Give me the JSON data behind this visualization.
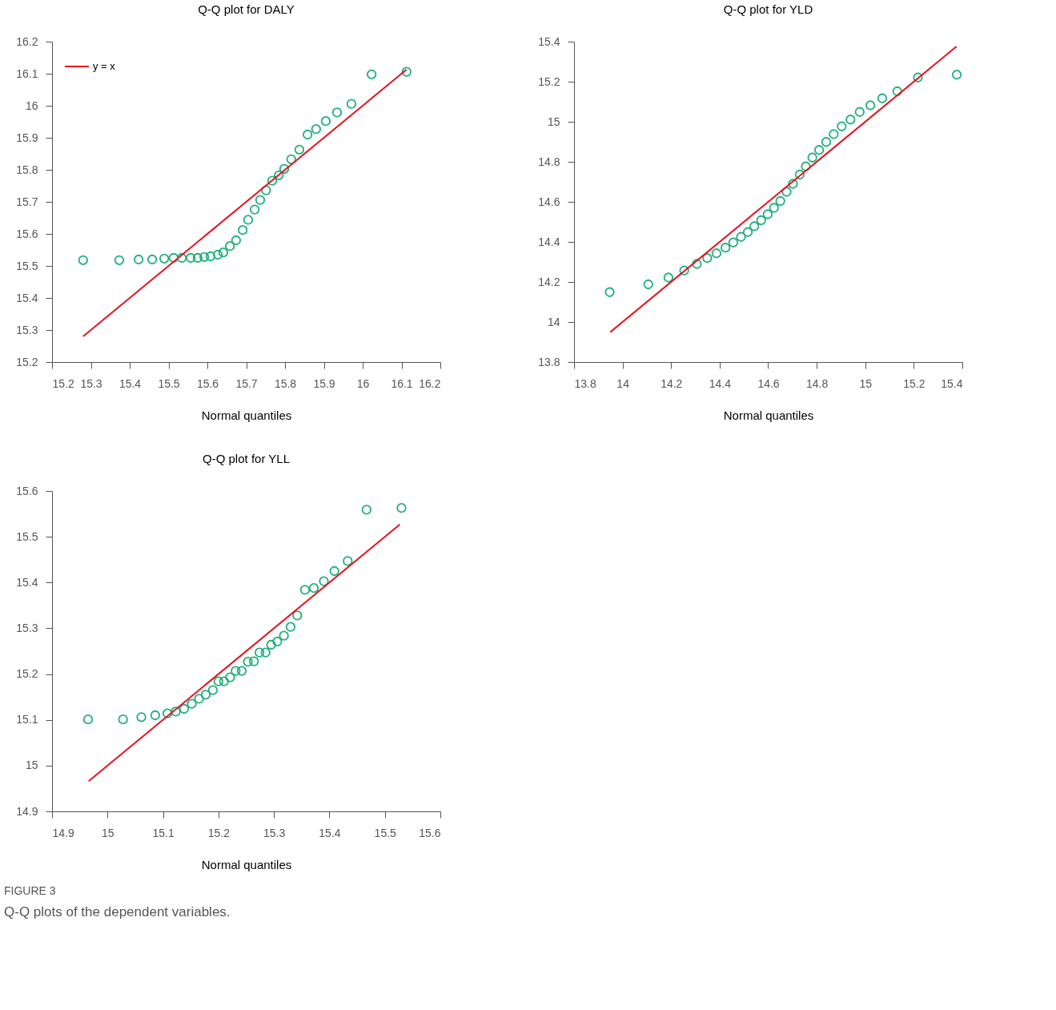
{
  "chart_data": [
    {
      "type": "scatter",
      "title": "Q-Q plot for DALY",
      "xlabel": "Normal quantiles",
      "xlim": [
        15.2,
        16.2
      ],
      "ylim": [
        15.2,
        16.2
      ],
      "xticks": [
        15.2,
        15.3,
        15.4,
        15.5,
        15.6,
        15.7,
        15.8,
        15.9,
        16,
        16.1,
        16.2
      ],
      "yticks": [
        15.2,
        15.3,
        15.4,
        15.5,
        15.6,
        15.7,
        15.8,
        15.9,
        16,
        16.1,
        16.2
      ],
      "grid": false,
      "legend": "top left",
      "series": [
        {
          "marker": "circle",
          "color": "#20b07a",
          "x": [
            15.28,
            15.373,
            15.423,
            15.458,
            15.489,
            15.513,
            15.534,
            15.557,
            15.575,
            15.592,
            15.608,
            15.627,
            15.641,
            15.658,
            15.674,
            15.691,
            15.705,
            15.722,
            15.736,
            15.751,
            15.767,
            15.784,
            15.798,
            15.816,
            15.837,
            15.858,
            15.88,
            15.905,
            15.934,
            15.971,
            16.023,
            16.113
          ],
          "values": [
            15.518,
            15.518,
            15.52,
            15.52,
            15.523,
            15.525,
            15.525,
            15.525,
            15.525,
            15.528,
            15.53,
            15.535,
            15.542,
            15.562,
            15.58,
            15.612,
            15.644,
            15.676,
            15.706,
            15.736,
            15.766,
            15.783,
            15.803,
            15.833,
            15.863,
            15.91,
            15.927,
            15.952,
            15.979,
            16.006,
            16.098,
            16.106
          ]
        },
        {
          "type": "line",
          "marker": "none",
          "name": "y = x",
          "color": "#e8101e",
          "x": [
            15.28,
            16.113
          ],
          "values": [
            15.28,
            16.113
          ]
        }
      ]
    },
    {
      "type": "scatter",
      "title": "Q-Q plot for YLD",
      "xlabel": "Normal quantiles",
      "xlim": [
        13.8,
        15.4
      ],
      "ylim": [
        13.8,
        15.4
      ],
      "xticks": [
        13.8,
        14,
        14.2,
        14.4,
        14.6,
        14.8,
        15,
        15.2,
        15.4
      ],
      "yticks": [
        13.8,
        14,
        14.2,
        14.4,
        14.6,
        14.8,
        15,
        15.2,
        15.4
      ],
      "grid": false,
      "legend": "top left",
      "series": [
        {
          "marker": "circle",
          "color": "#20b07a",
          "x": [
            13.947,
            14.106,
            14.189,
            14.254,
            14.306,
            14.349,
            14.387,
            14.424,
            14.456,
            14.488,
            14.516,
            14.543,
            14.571,
            14.598,
            14.624,
            14.65,
            14.676,
            14.702,
            14.73,
            14.755,
            14.782,
            14.81,
            14.839,
            14.87,
            14.903,
            14.939,
            14.977,
            15.021,
            15.07,
            15.132,
            15.217,
            15.377
          ],
          "values": [
            14.149,
            14.188,
            14.222,
            14.257,
            14.29,
            14.319,
            14.343,
            14.371,
            14.397,
            14.425,
            14.449,
            14.478,
            14.508,
            14.538,
            14.57,
            14.604,
            14.65,
            14.69,
            14.736,
            14.777,
            14.821,
            14.859,
            14.899,
            14.938,
            14.977,
            15.011,
            15.049,
            15.082,
            15.117,
            15.152,
            15.221,
            15.235
          ]
        },
        {
          "type": "line",
          "marker": "none",
          "name": "y = x",
          "color": "#e8101e",
          "x": [
            13.949,
            15.376
          ],
          "values": [
            13.949,
            15.376
          ]
        }
      ]
    },
    {
      "type": "scatter",
      "title": "Q-Q plot for YLL",
      "xlabel": "Normal quantiles",
      "xlim": [
        14.9,
        15.6
      ],
      "ylim": [
        14.9,
        15.6
      ],
      "xticks": [
        14.9,
        15,
        15.1,
        15.2,
        15.3,
        15.4,
        15.5,
        15.6
      ],
      "yticks": [
        14.9,
        15,
        15.1,
        15.2,
        15.3,
        15.4,
        15.5,
        15.6
      ],
      "grid": false,
      "legend": "top left",
      "annotations": [
        "FIGURE 3",
        "Q-Q plots of the dependent variables."
      ],
      "series": [
        {
          "marker": "circle",
          "color": "#20b07a",
          "x": [
            14.965,
            15.028,
            15.061,
            15.086,
            15.108,
            15.123,
            15.138,
            15.152,
            15.165,
            15.177,
            15.19,
            15.2,
            15.21,
            15.221,
            15.231,
            15.242,
            15.253,
            15.264,
            15.274,
            15.285,
            15.295,
            15.306,
            15.318,
            15.33,
            15.342,
            15.356,
            15.372,
            15.39,
            15.409,
            15.433,
            15.467,
            15.53
          ],
          "values": [
            15.101,
            15.101,
            15.106,
            15.11,
            15.114,
            15.118,
            15.124,
            15.135,
            15.146,
            15.155,
            15.165,
            15.184,
            15.184,
            15.193,
            15.207,
            15.207,
            15.227,
            15.228,
            15.247,
            15.247,
            15.264,
            15.271,
            15.284,
            15.303,
            15.328,
            15.384,
            15.388,
            15.403,
            15.425,
            15.447,
            15.559,
            15.563
          ]
        },
        {
          "type": "line",
          "marker": "none",
          "name": "y = x",
          "color": "#e8101e",
          "x": [
            14.966,
            15.527
          ],
          "values": [
            14.966,
            15.527
          ]
        }
      ]
    }
  ]
}
